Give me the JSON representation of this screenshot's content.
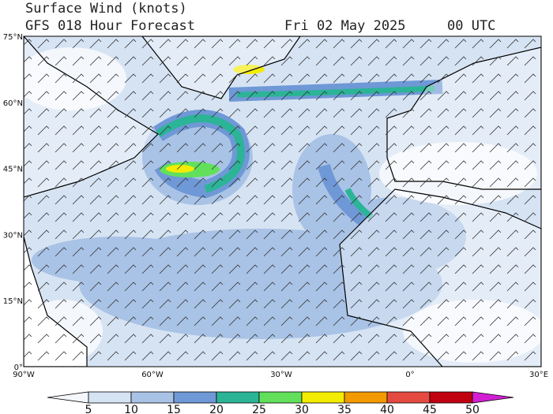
{
  "header": {
    "title": "Surface Wind (knots)",
    "subtitle": "GFS 018 Hour Forecast",
    "date": "Fri 02 May 2025",
    "time": "00 UTC"
  },
  "map": {
    "lat_labels": [
      "75°N",
      "60°N",
      "45°N",
      "30°N",
      "15°N",
      "0°"
    ],
    "lon_labels": [
      "90°W",
      "60°W",
      "30°W",
      "0°",
      "30°E"
    ]
  },
  "colorbar": {
    "ticks": [
      "5",
      "10",
      "15",
      "20",
      "25",
      "30",
      "35",
      "40",
      "45",
      "50"
    ],
    "colors": [
      "#f4f7fc",
      "#d6e3f3",
      "#a9c3e6",
      "#6f98d6",
      "#2cb497",
      "#62e05c",
      "#f4ec00",
      "#f39a00",
      "#e44a40",
      "#c00010",
      "#d21fd2"
    ]
  }
}
